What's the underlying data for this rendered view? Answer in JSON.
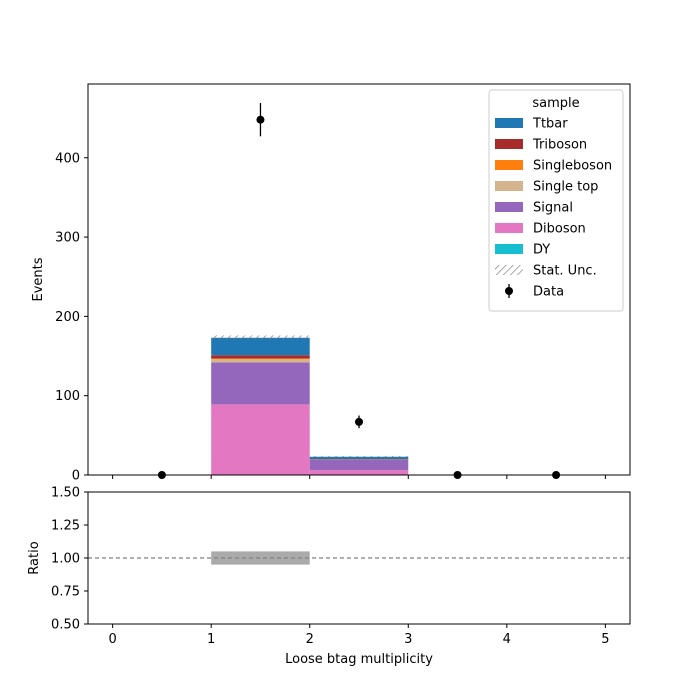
{
  "chart_data": [
    {
      "type": "bar",
      "stacked": true,
      "ylabel": "Events",
      "xlim": [
        -0.25,
        5.25
      ],
      "ylim": [
        0,
        493
      ],
      "yticks": [
        0,
        100,
        200,
        300,
        400
      ],
      "xticks": [
        0,
        1,
        2,
        3,
        4,
        5
      ],
      "bin_edges": [
        0,
        1,
        2,
        3,
        4,
        5
      ],
      "series": [
        {
          "name": "Diboson",
          "color": "#e377c2",
          "values": [
            0,
            89,
            6,
            0,
            0
          ]
        },
        {
          "name": "Signal",
          "color": "#9467bd",
          "values": [
            0,
            53,
            13,
            0,
            0
          ]
        },
        {
          "name": "Single top",
          "color": "#d4b48c",
          "values": [
            0,
            4,
            0.5,
            0,
            0
          ]
        },
        {
          "name": "Singleboson",
          "color": "#ff7f0e",
          "values": [
            0,
            1,
            0,
            0,
            0
          ]
        },
        {
          "name": "Triboson",
          "color": "#a82b2b",
          "values": [
            0,
            4,
            0.5,
            0,
            0
          ]
        },
        {
          "name": "Ttbar",
          "color": "#1f77b4",
          "values": [
            0,
            22,
            3,
            0,
            0
          ]
        },
        {
          "name": "DY",
          "color": "#17becf",
          "values": [
            0,
            0,
            0,
            0,
            0
          ]
        }
      ],
      "stat_unc": {
        "name": "Stat. Unc.",
        "up": [
          0,
          176,
          24,
          0,
          0
        ],
        "down": [
          0,
          170,
          22,
          0,
          0
        ]
      },
      "data": {
        "name": "Data",
        "x": [
          0.5,
          1.5,
          2.5,
          3.5,
          4.5
        ],
        "y": [
          0,
          448,
          67,
          0,
          0
        ],
        "err": [
          0,
          21,
          8,
          0,
          0
        ]
      },
      "legend": {
        "title": "sample",
        "position": "top-right",
        "entries": [
          {
            "name": "Ttbar",
            "color": "#1f77b4",
            "kind": "patch"
          },
          {
            "name": "Triboson",
            "color": "#a82b2b",
            "kind": "patch"
          },
          {
            "name": "Singleboson",
            "color": "#ff7f0e",
            "kind": "patch"
          },
          {
            "name": "Single top",
            "color": "#d4b48c",
            "kind": "patch"
          },
          {
            "name": "Signal",
            "color": "#9467bd",
            "kind": "patch"
          },
          {
            "name": "Diboson",
            "color": "#e377c2",
            "kind": "patch"
          },
          {
            "name": "DY",
            "color": "#17becf",
            "kind": "patch"
          },
          {
            "name": "Stat. Unc.",
            "color": "#888888",
            "kind": "hatch"
          },
          {
            "name": "Data",
            "color": "#000000",
            "kind": "errorbar"
          }
        ]
      }
    },
    {
      "type": "bar",
      "xlabel": "Loose btag multiplicity",
      "ylabel": "Ratio",
      "xlim": [
        -0.25,
        5.25
      ],
      "ylim": [
        0.5,
        1.5
      ],
      "yticks": [
        "0.50",
        "0.75",
        "1.00",
        "1.25",
        "1.50"
      ],
      "xticks": [
        "0",
        "1",
        "2",
        "3",
        "4",
        "5"
      ],
      "reference_line": 1.0,
      "unc_band": {
        "x": [
          1,
          2
        ],
        "low": 0.95,
        "high": 1.05,
        "color": "#aaaaaa"
      }
    }
  ]
}
